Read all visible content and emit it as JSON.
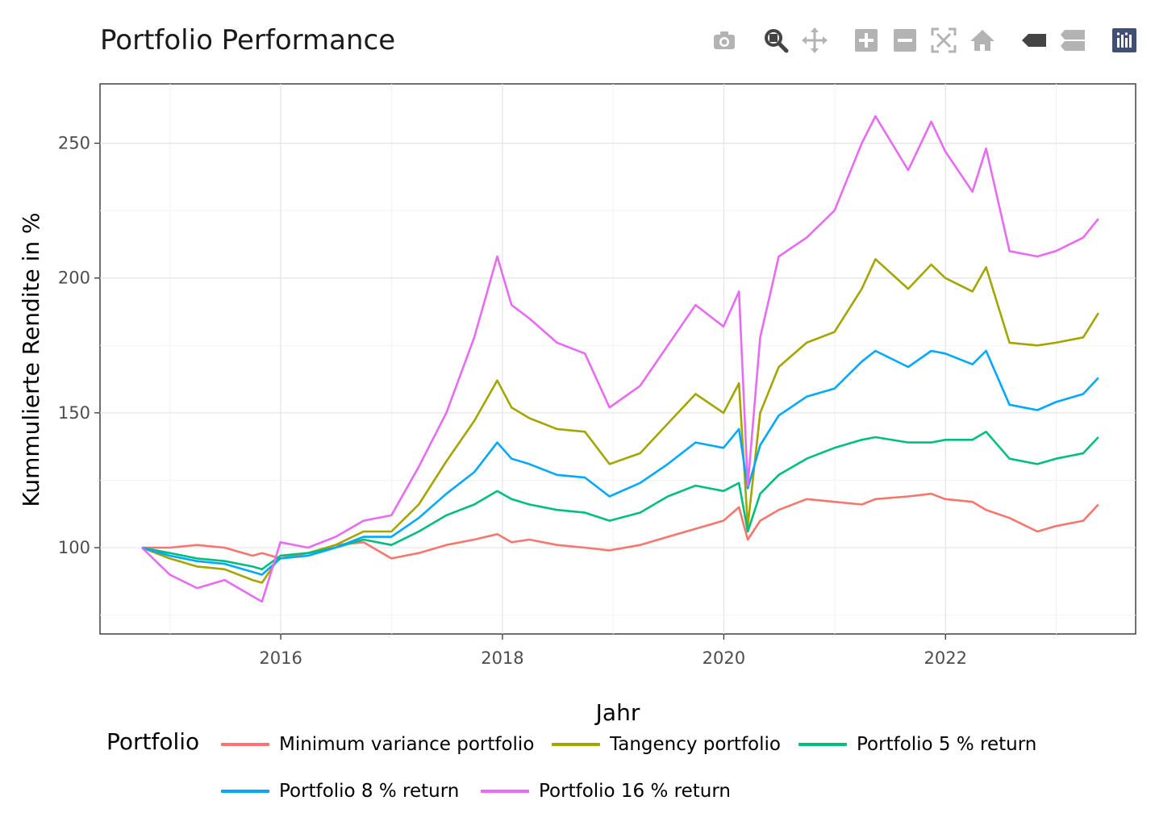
{
  "title": "Portfolio Performance",
  "modebar": {
    "buttons": [
      {
        "name": "camera-icon",
        "title": "Download plot as a png"
      },
      {
        "name": "zoom-icon",
        "title": "Zoom"
      },
      {
        "name": "pan-icon",
        "title": "Pan"
      },
      {
        "name": "zoom-in-icon",
        "title": "Zoom in"
      },
      {
        "name": "zoom-out-icon",
        "title": "Zoom out"
      },
      {
        "name": "autoscale-icon",
        "title": "Autoscale"
      },
      {
        "name": "home-icon",
        "title": "Reset axes"
      },
      {
        "name": "hover-closest-icon",
        "title": "Show closest data on hover"
      },
      {
        "name": "hover-compare-icon",
        "title": "Compare data on hover"
      },
      {
        "name": "plotly-logo-icon",
        "title": "Produced with Plotly"
      }
    ],
    "active": "zoom-icon",
    "colors": {
      "inactive": "#b3b3b3",
      "active": "#444444",
      "logo": "#3f4f75"
    }
  },
  "chart_data": {
    "type": "line",
    "title": "Portfolio Performance",
    "xlabel": "Jahr",
    "ylabel": "Kummulierte Rendite in %",
    "x_ticks": [
      "2016",
      "2018",
      "2020",
      "2022"
    ],
    "y_ticks": [
      100,
      150,
      200,
      250
    ],
    "xlim": [
      "2014-05-15",
      "2023-09-20"
    ],
    "ylim": [
      68,
      272
    ],
    "grid": true,
    "legend": {
      "title": "Portfolio",
      "placement": "bottom"
    },
    "x": [
      "2014-09-30",
      "2014-12-31",
      "2015-03-31",
      "2015-06-30",
      "2015-09-30",
      "2015-10-31",
      "2015-12-31",
      "2016-03-31",
      "2016-06-30",
      "2016-09-30",
      "2016-12-31",
      "2017-03-31",
      "2017-06-30",
      "2017-09-30",
      "2017-12-15",
      "2018-01-31",
      "2018-03-31",
      "2018-06-30",
      "2018-09-30",
      "2018-12-20",
      "2019-03-31",
      "2019-06-30",
      "2019-09-30",
      "2019-12-31",
      "2020-02-20",
      "2020-03-20",
      "2020-04-30",
      "2020-06-30",
      "2020-09-30",
      "2020-12-31",
      "2021-03-31",
      "2021-05-15",
      "2021-08-31",
      "2021-11-15",
      "2021-12-31",
      "2022-03-31",
      "2022-05-15",
      "2022-07-31",
      "2022-10-31",
      "2022-12-31",
      "2023-03-31",
      "2023-05-20"
    ],
    "series": [
      {
        "name": "Minimum variance portfolio",
        "color": "#F8766D",
        "values": [
          100,
          100,
          101,
          100,
          97,
          98,
          96,
          98,
          101,
          102,
          96,
          98,
          101,
          103,
          105,
          102,
          103,
          101,
          100,
          99,
          101,
          104,
          107,
          110,
          115,
          103,
          110,
          114,
          118,
          117,
          116,
          118,
          119,
          120,
          118,
          117,
          114,
          111,
          106,
          108,
          110,
          116
        ]
      },
      {
        "name": "Tangency portfolio",
        "color": "#A3A500",
        "values": [
          100,
          96,
          93,
          92,
          88,
          87,
          97,
          98,
          101,
          106,
          106,
          116,
          132,
          147,
          162,
          152,
          148,
          144,
          143,
          131,
          135,
          146,
          157,
          150,
          161,
          108,
          150,
          167,
          176,
          180,
          196,
          207,
          196,
          205,
          200,
          195,
          204,
          176,
          175,
          176,
          178,
          187
        ]
      },
      {
        "name": "Portfolio 5 % return",
        "color": "#00BF7D",
        "values": [
          100,
          98,
          96,
          95,
          93,
          92,
          97,
          98,
          100,
          103,
          101,
          106,
          112,
          116,
          121,
          118,
          116,
          114,
          113,
          110,
          113,
          119,
          123,
          121,
          124,
          106,
          120,
          127,
          133,
          137,
          140,
          141,
          139,
          139,
          140,
          140,
          143,
          133,
          131,
          133,
          135,
          141
        ]
      },
      {
        "name": "Portfolio 8 % return",
        "color": "#00A9FF",
        "values": [
          100,
          97,
          95,
          94,
          91,
          90,
          96,
          97,
          100,
          104,
          104,
          111,
          120,
          128,
          139,
          133,
          131,
          127,
          126,
          119,
          124,
          131,
          139,
          137,
          144,
          122,
          138,
          149,
          156,
          159,
          169,
          173,
          167,
          173,
          172,
          168,
          173,
          153,
          151,
          154,
          157,
          163
        ]
      },
      {
        "name": "Portfolio 16 % return",
        "color": "#E76BF3",
        "values": [
          100,
          90,
          85,
          88,
          82,
          80,
          102,
          100,
          104,
          110,
          112,
          130,
          150,
          178,
          208,
          190,
          185,
          176,
          172,
          152,
          160,
          175,
          190,
          182,
          195,
          123,
          178,
          208,
          215,
          225,
          250,
          260,
          240,
          258,
          247,
          232,
          248,
          210,
          208,
          210,
          215,
          222
        ]
      }
    ]
  }
}
